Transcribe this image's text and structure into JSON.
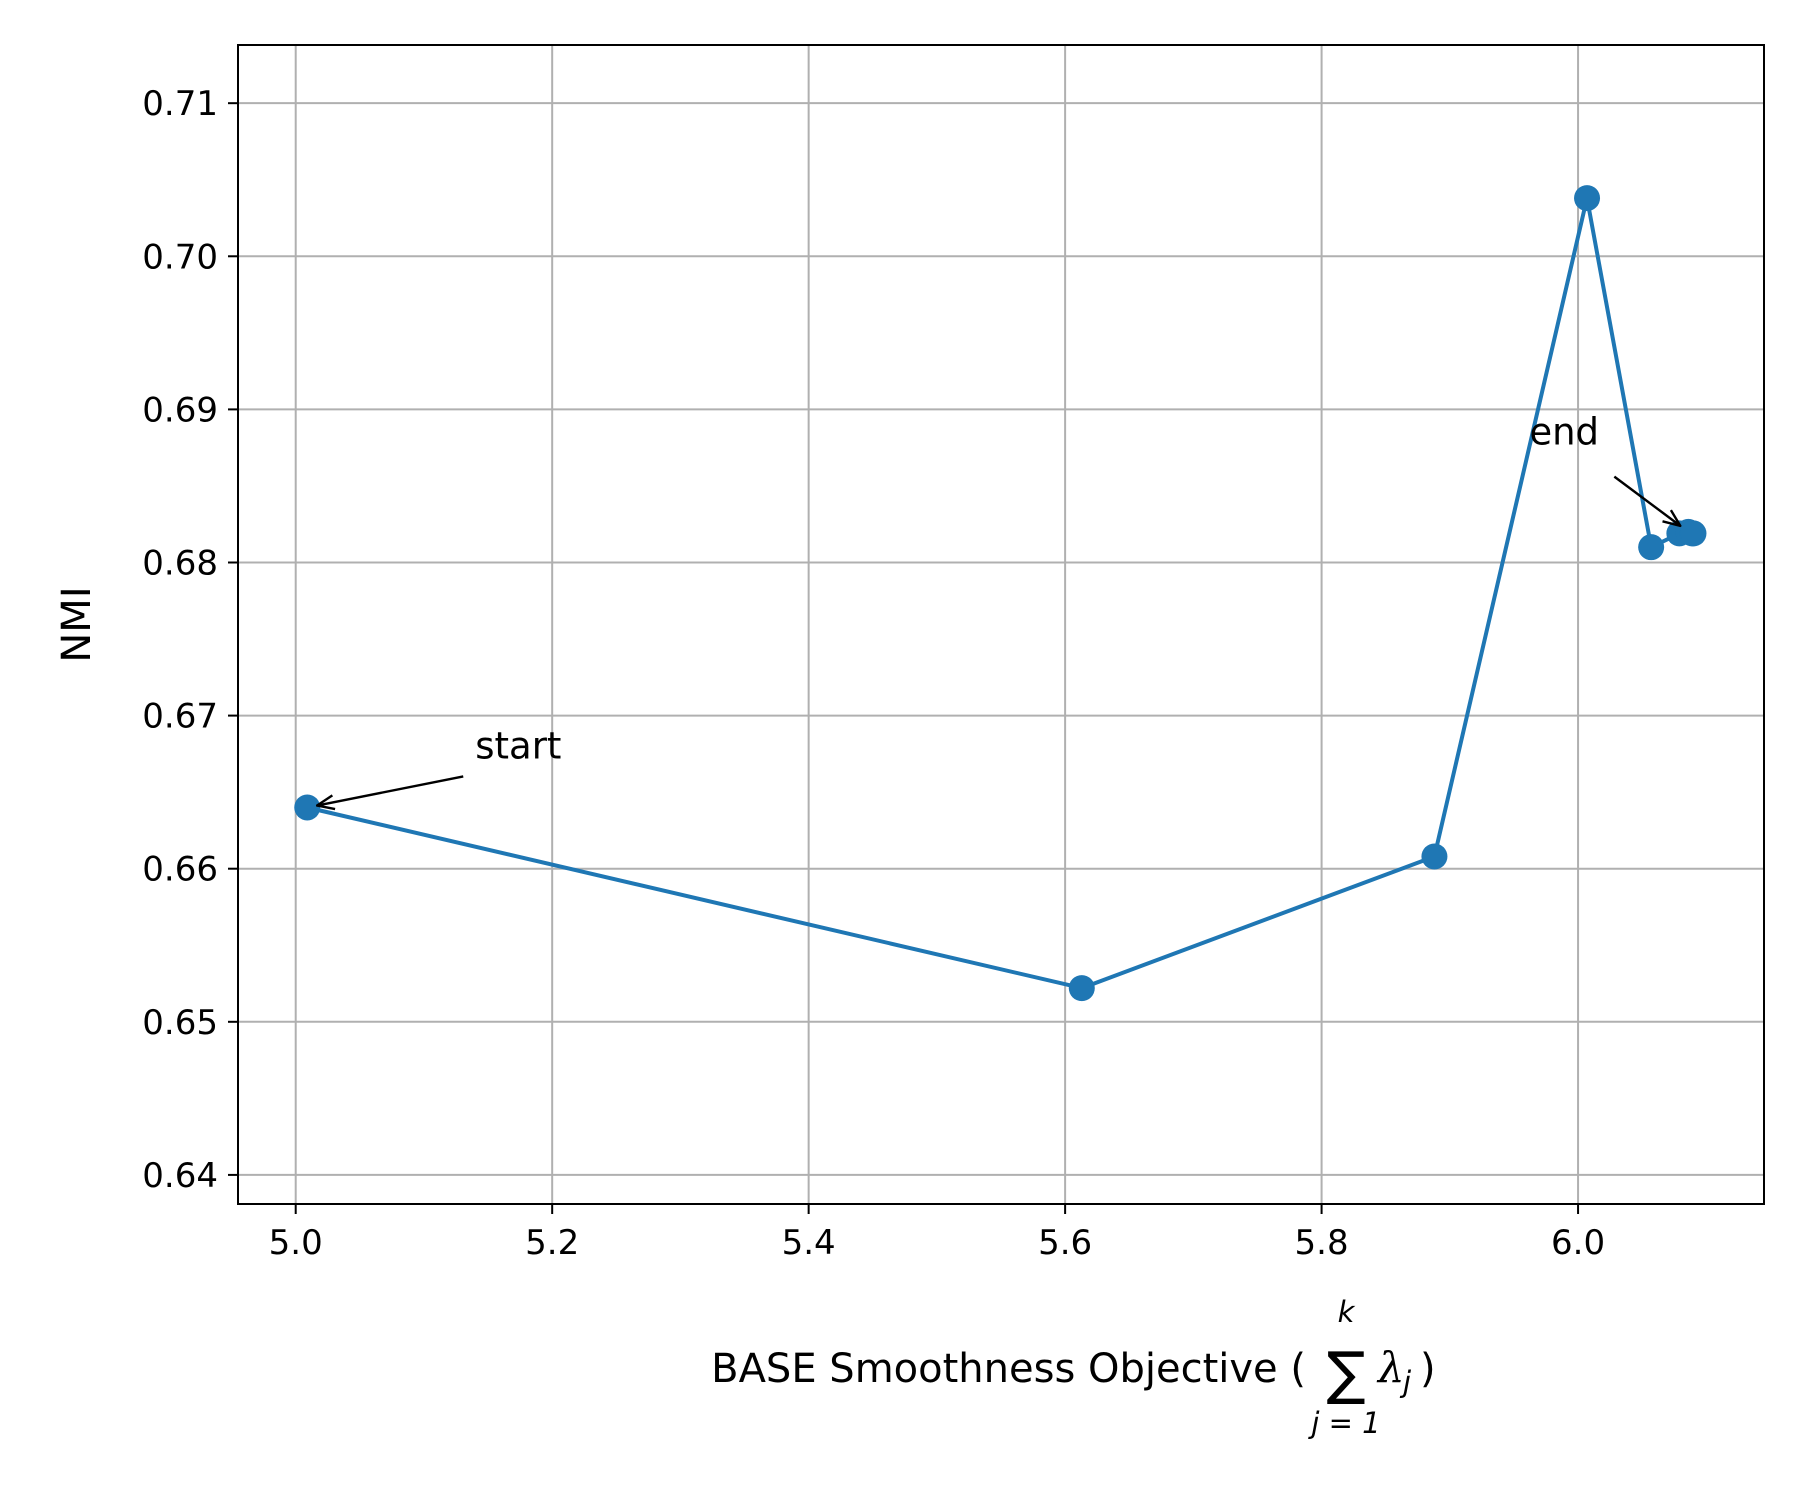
{
  "chart_data": {
    "type": "line",
    "xlabel": "BASE Smoothness Objective (",
    "xlabel_math": {
      "sum_symbol": "∑",
      "upper": "k",
      "lower": "j = 1",
      "term": "λ",
      "subscript": "j",
      "close": ")"
    },
    "ylabel": "NMI",
    "xlim": [
      4.955,
      6.145
    ],
    "ylim": [
      0.6381,
      0.7138
    ],
    "xticks": [
      5.0,
      5.2,
      5.4,
      5.6,
      5.8,
      6.0
    ],
    "xtick_labels": [
      "5.0",
      "5.2",
      "5.4",
      "5.6",
      "5.8",
      "6.0"
    ],
    "yticks": [
      0.64,
      0.65,
      0.66,
      0.67,
      0.68,
      0.69,
      0.7,
      0.71
    ],
    "ytick_labels": [
      "0.64",
      "0.65",
      "0.66",
      "0.67",
      "0.68",
      "0.69",
      "0.70",
      "0.71"
    ],
    "grid": true,
    "series": [
      {
        "color": "#1f77b4",
        "marker": "circle",
        "points": [
          {
            "x": 5.009,
            "y": 0.664
          },
          {
            "x": 5.613,
            "y": 0.6522
          },
          {
            "x": 5.888,
            "y": 0.6608
          },
          {
            "x": 6.007,
            "y": 0.7038
          },
          {
            "x": 6.057,
            "y": 0.681
          },
          {
            "x": 6.079,
            "y": 0.6819
          },
          {
            "x": 6.086,
            "y": 0.682
          },
          {
            "x": 6.089,
            "y": 0.6819
          },
          {
            "x": 6.09,
            "y": 0.6819
          }
        ]
      }
    ],
    "annotations": [
      {
        "text": "start",
        "target": {
          "x": 5.009,
          "y": 0.664
        },
        "text_pos": {
          "x": 5.14,
          "y": 0.6672
        }
      },
      {
        "text": "end",
        "target": {
          "x": 6.086,
          "y": 0.682
        },
        "text_pos": {
          "x": 5.962,
          "y": 0.6877
        }
      }
    ]
  }
}
